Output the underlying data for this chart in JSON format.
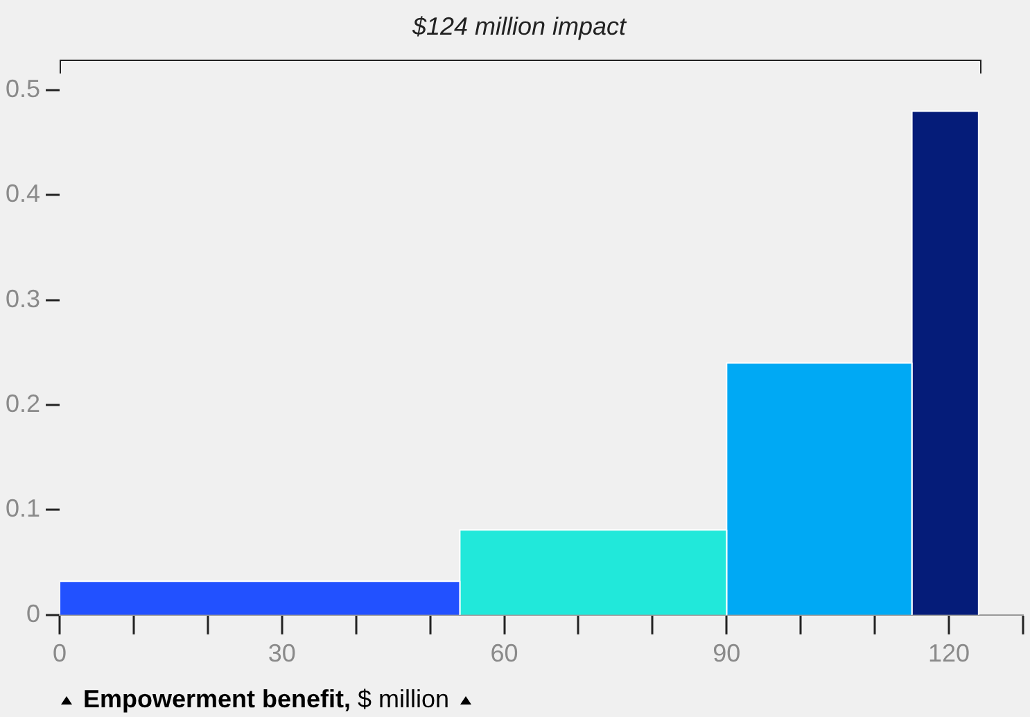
{
  "chart_data": {
    "type": "histogram",
    "xlabel": "Empowerment benefit, $ million",
    "annotations": [
      "$124 million impact"
    ],
    "bins": [
      0,
      54,
      90,
      115,
      124
    ],
    "values": [
      0.032,
      0.081,
      0.24,
      0.48
    ],
    "colors": [
      "#2251ff",
      "#21e8da",
      "#00a9f4",
      "#051c79"
    ],
    "xlim": [
      0,
      130
    ],
    "xticks": [
      0,
      {
        "value": 10,
        "label": null
      },
      {
        "value": 20,
        "label": null
      },
      30,
      {
        "value": 40,
        "label": null
      },
      {
        "value": 50,
        "label": null
      },
      60,
      {
        "value": 70,
        "label": null
      },
      {
        "value": 80,
        "label": null
      },
      90,
      {
        "value": 100,
        "label": null
      },
      {
        "value": 110,
        "label": null
      },
      120,
      {
        "value": 130,
        "label": null
      }
    ],
    "ylim": [
      0,
      0.5
    ],
    "yticks": [
      0,
      0.1,
      0.2,
      0.3,
      0.4,
      0.5
    ],
    "grid": false,
    "legend": false
  }
}
